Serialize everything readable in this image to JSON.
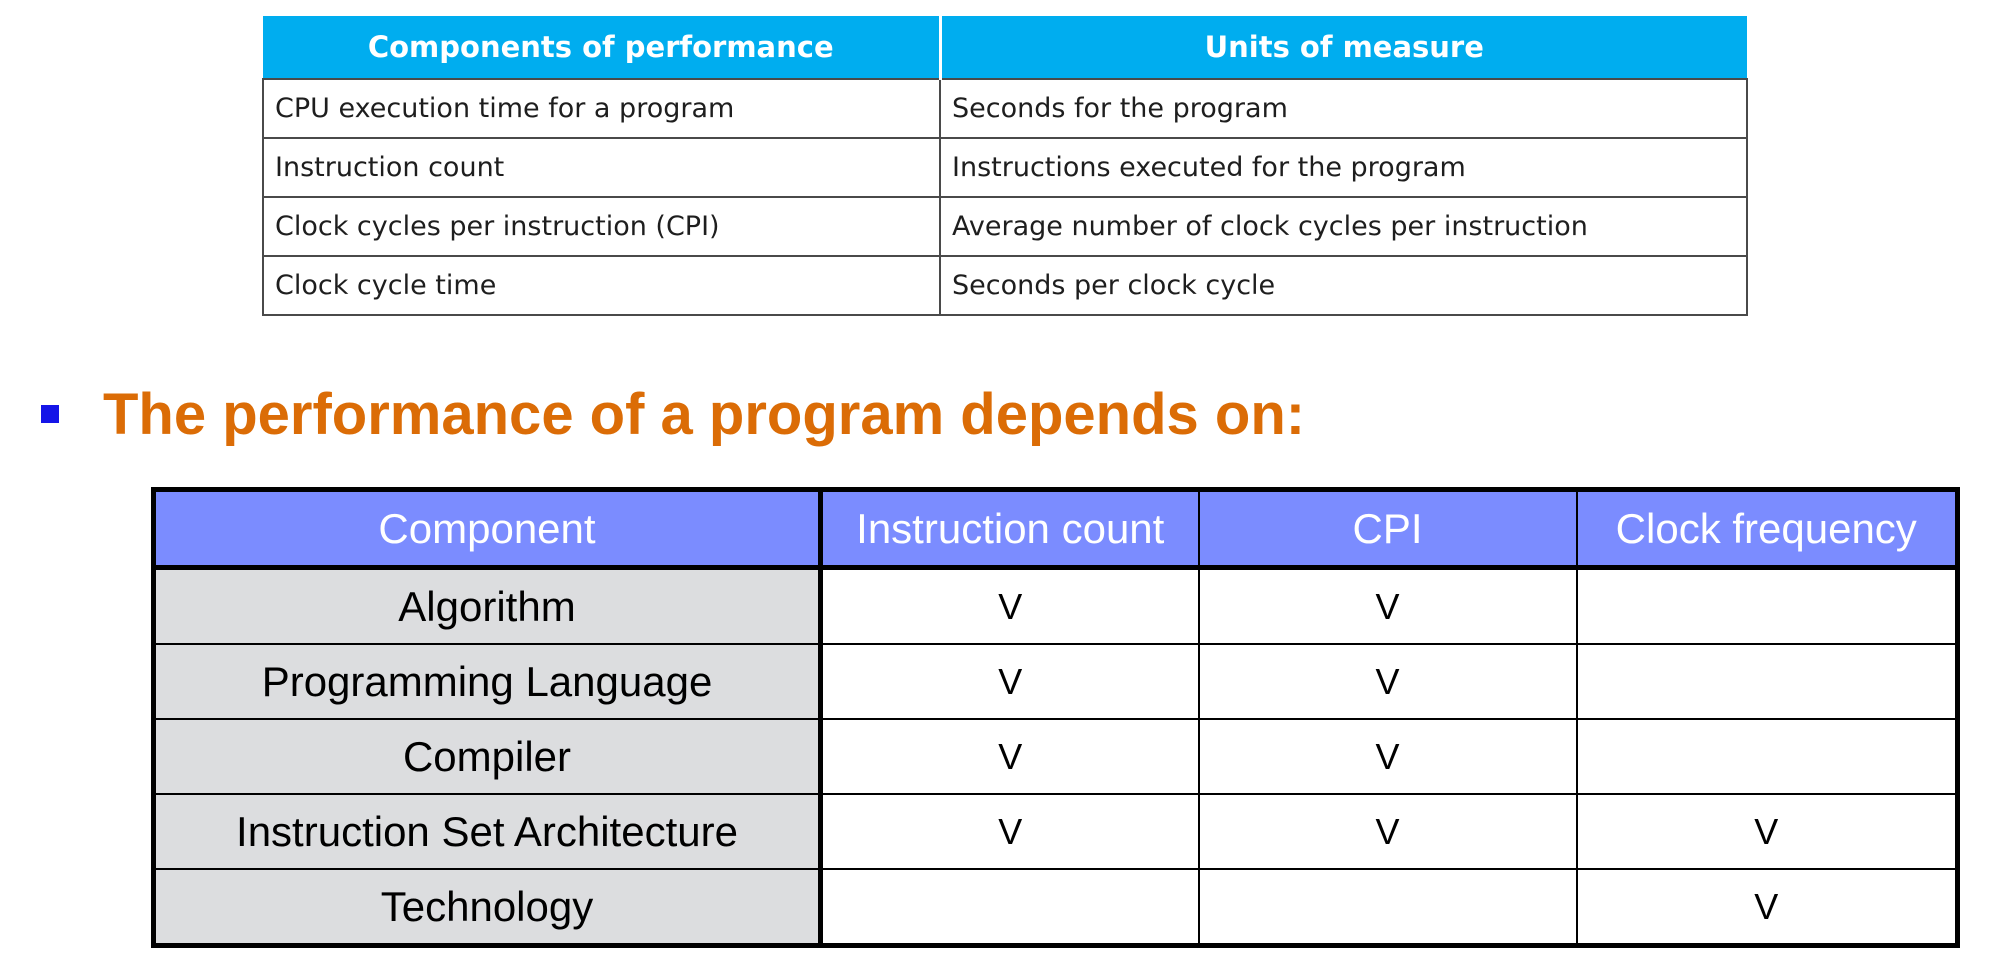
{
  "top_table": {
    "headers": [
      "Components of performance",
      "Units of measure"
    ],
    "rows": [
      [
        "CPU execution time for a program",
        "Seconds for the program"
      ],
      [
        "Instruction count",
        "Instructions executed for the program"
      ],
      [
        "Clock cycles per instruction (CPI)",
        "Average number of clock cycles per instruction"
      ],
      [
        "Clock cycle time",
        "Seconds per clock cycle"
      ]
    ]
  },
  "heading": {
    "text": "The performance of a program depends on:"
  },
  "bottom_table": {
    "headers": [
      "Component",
      "Instruction count",
      "CPI",
      "Clock frequency"
    ],
    "rows": [
      [
        "Algorithm",
        "V",
        "V",
        ""
      ],
      [
        "Programming Language",
        "V",
        "V",
        ""
      ],
      [
        "Compiler",
        "V",
        "V",
        ""
      ],
      [
        "Instruction Set Architecture",
        "V",
        "V",
        "V"
      ],
      [
        "Technology",
        "",
        "",
        "V"
      ]
    ]
  },
  "colors": {
    "top_header_bg": "#00adef",
    "bottom_header_bg": "#7b8cff",
    "row_label_bg": "#dcdddf",
    "heading_color": "#db6c06",
    "bullet_color": "#1515e8"
  }
}
